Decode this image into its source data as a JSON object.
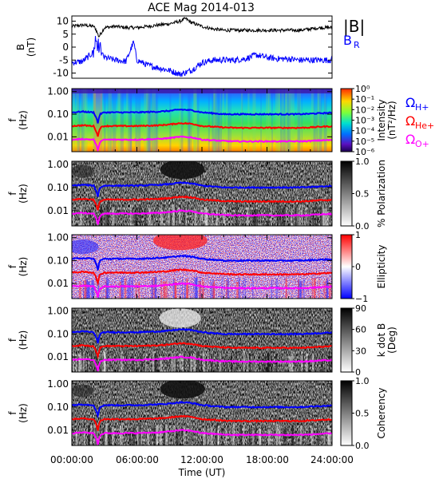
{
  "title": "ACE Mag 2014-013",
  "xaxis": {
    "label": "Time (UT)",
    "ticks": [
      "00:00:00",
      "06:00:00",
      "12:00:00",
      "18:00:00",
      "24:00:00"
    ]
  },
  "colors": {
    "B_total": "#000000",
    "B_R": "#0000ff",
    "H_plus": "#0000ff",
    "He_plus": "#ff0000",
    "O_plus": "#ff00ff"
  },
  "chart_data": [
    {
      "type": "line",
      "ylabel": "B",
      "yunit": "(nT)",
      "ylim": [
        -12,
        12
      ],
      "yticks": [
        "10",
        "5",
        "0",
        "-5",
        "-10"
      ],
      "xlim": [
        0,
        24
      ],
      "legend": [
        "|B|",
        "B_R"
      ],
      "series": [
        {
          "name": "|B|",
          "x": [
            0,
            1,
            2,
            2.2,
            2.5,
            3,
            4,
            5,
            6,
            7,
            8,
            9,
            10,
            10.5,
            11,
            12,
            13,
            14,
            15,
            16,
            17,
            18,
            19,
            20,
            21,
            22,
            23,
            24
          ],
          "y": [
            8,
            8.5,
            8,
            7,
            4,
            7.5,
            8,
            7.5,
            7.5,
            8,
            8.5,
            9,
            10,
            11,
            9.5,
            8,
            7,
            6.5,
            6.5,
            6.5,
            6.5,
            6.5,
            6.5,
            6.5,
            6.5,
            7,
            7.5,
            7.5
          ]
        },
        {
          "name": "B_R",
          "x": [
            0,
            1,
            2,
            2.2,
            2.5,
            3,
            4,
            5,
            5.7,
            6,
            7,
            8,
            9,
            10,
            11,
            12,
            13,
            14,
            15,
            16,
            17,
            18,
            19,
            20,
            21,
            22,
            23,
            24
          ],
          "y": [
            -6,
            -5.5,
            -2,
            3,
            -1,
            -4,
            -5,
            -5.5,
            2,
            -5,
            -7,
            -8,
            -9,
            -10.5,
            -9,
            -6,
            -5,
            -5,
            -5,
            -4.5,
            -3,
            -4,
            -4.5,
            -4.5,
            -5,
            -5,
            -5,
            -5
          ]
        }
      ]
    },
    {
      "type": "heatmap",
      "ylabel": "f",
      "yunit": "(Hz)",
      "ylim": [
        0.002,
        1.0
      ],
      "ylog": true,
      "yticks": [
        "1.00",
        "0.10",
        "0.01"
      ],
      "colorbar": {
        "label": "Intensity",
        "unit": "(nT²/Hz)",
        "ticks": [
          "10⁰",
          "10⁻¹",
          "10⁻²",
          "10⁻³",
          "10⁻⁴",
          "10⁻⁵",
          "10⁻⁶"
        ],
        "colormap": "rainbow"
      },
      "legend": [
        "Ω_H+",
        "Ω_He+",
        "Ω_O+"
      ]
    },
    {
      "type": "heatmap",
      "ylabel": "f",
      "yunit": "(Hz)",
      "ylog": true,
      "yticks": [
        "1.00",
        "0.10",
        "0.01"
      ],
      "colorbar": {
        "label": "% Polarization",
        "ticks": [
          "1.0",
          "0.5",
          "0.0"
        ],
        "colormap": "gray"
      }
    },
    {
      "type": "heatmap",
      "ylabel": "f",
      "yunit": "(Hz)",
      "ylog": true,
      "yticks": [
        "1.00",
        "0.10",
        "0.01"
      ],
      "colorbar": {
        "label": "Ellipticity",
        "ticks": [
          "1",
          "0",
          "−1"
        ],
        "colormap": "red-white-blue"
      }
    },
    {
      "type": "heatmap",
      "ylabel": "f",
      "yunit": "(Hz)",
      "ylog": true,
      "yticks": [
        "1.00",
        "0.10",
        "0.01"
      ],
      "colorbar": {
        "label": "k dot B",
        "unit": "(Deg)",
        "ticks": [
          "90",
          "60",
          "30",
          "0"
        ],
        "colormap": "gray"
      }
    },
    {
      "type": "heatmap",
      "ylabel": "f",
      "yunit": "(Hz)",
      "ylog": true,
      "yticks": [
        "1.00",
        "0.10",
        "0.01"
      ],
      "colorbar": {
        "label": "Coherency",
        "ticks": [
          "1.0",
          "0.5",
          "0.0"
        ],
        "colormap": "gray"
      }
    }
  ],
  "gyrofrequency_lines": {
    "x": [
      0,
      1,
      2,
      2.2,
      2.4,
      2.6,
      3,
      4,
      5,
      6,
      7,
      8,
      9,
      10,
      11,
      12,
      13,
      14,
      15,
      16,
      17,
      18,
      19,
      20,
      21,
      22,
      23,
      24
    ],
    "H_plus": [
      0.12,
      0.13,
      0.12,
      0.08,
      0.04,
      0.1,
      0.12,
      0.12,
      0.12,
      0.12,
      0.125,
      0.13,
      0.14,
      0.16,
      0.15,
      0.12,
      0.11,
      0.1,
      0.1,
      0.1,
      0.1,
      0.1,
      0.1,
      0.1,
      0.1,
      0.105,
      0.11,
      0.115
    ],
    "He_plus": [
      0.03,
      0.032,
      0.03,
      0.02,
      0.01,
      0.025,
      0.03,
      0.03,
      0.03,
      0.03,
      0.031,
      0.032,
      0.035,
      0.04,
      0.038,
      0.03,
      0.028,
      0.026,
      0.025,
      0.025,
      0.025,
      0.025,
      0.025,
      0.025,
      0.025,
      0.026,
      0.028,
      0.029
    ],
    "O_plus": [
      0.0075,
      0.008,
      0.0075,
      0.005,
      0.0025,
      0.006,
      0.0075,
      0.0075,
      0.0075,
      0.0075,
      0.0078,
      0.008,
      0.0088,
      0.01,
      0.0095,
      0.0075,
      0.007,
      0.0065,
      0.0063,
      0.0063,
      0.0063,
      0.0063,
      0.0063,
      0.0063,
      0.0063,
      0.0065,
      0.007,
      0.0072
    ]
  }
}
